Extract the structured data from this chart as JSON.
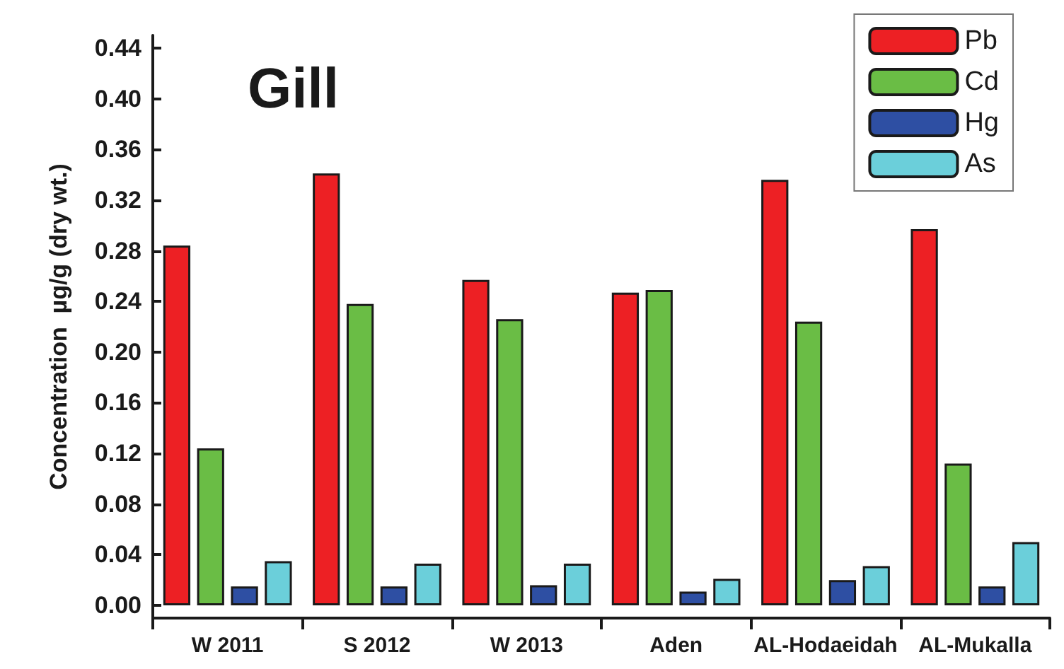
{
  "chart_data": {
    "type": "bar",
    "title": "Gill",
    "ylabel": "Concentration  µg/g (dry wt.)",
    "categories": [
      "W 2011",
      "S 2012",
      "W 2013",
      "Aden",
      "AL-Hodaeidah",
      "AL-Mukalla"
    ],
    "series": [
      {
        "name": "Pb",
        "color": "#ed2024",
        "values": [
          0.284,
          0.341,
          0.257,
          0.247,
          0.336,
          0.297
        ]
      },
      {
        "name": "Cd",
        "color": "#6abd45",
        "values": [
          0.124,
          0.238,
          0.226,
          0.249,
          0.224,
          0.112
        ]
      },
      {
        "name": "Hg",
        "color": "#2e4fa3",
        "values": [
          0.015,
          0.015,
          0.016,
          0.011,
          0.02,
          0.015
        ]
      },
      {
        "name": "As",
        "color": "#6bcfda",
        "values": [
          0.035,
          0.033,
          0.033,
          0.021,
          0.031,
          0.05
        ]
      }
    ],
    "ylim": [
      -0.01,
      0.45
    ],
    "yticks": [
      {
        "value": 0,
        "label": "0.00"
      },
      0.04,
      0.08,
      0.12,
      0.16,
      {
        "value": 0.2,
        "label": "0.20"
      },
      0.24,
      0.28,
      0.32,
      0.36,
      {
        "value": 0.4,
        "label": "0.40"
      },
      0.44
    ],
    "grid": false,
    "legend": "top right"
  }
}
